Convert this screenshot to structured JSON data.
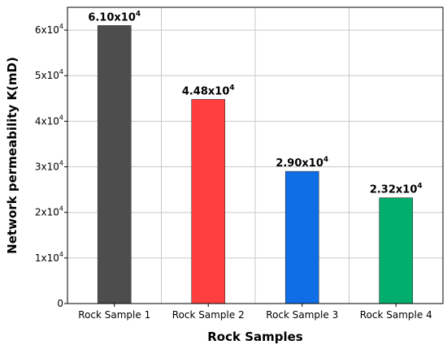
{
  "chart_data": {
    "type": "bar",
    "categories": [
      "Rock Sample 1",
      "Rock Sample 2",
      "Rock Sample 3",
      "Rock Sample 4"
    ],
    "values": [
      61000,
      44800,
      29000,
      23200
    ],
    "data_labels": [
      {
        "mantissa": "6.10x10",
        "exponent": "4"
      },
      {
        "mantissa": "4.48x10",
        "exponent": "4"
      },
      {
        "mantissa": "2.90x10",
        "exponent": "4"
      },
      {
        "mantissa": "2.32x10",
        "exponent": "4"
      }
    ],
    "colors": [
      "#4d4d4d",
      "#ff3f3f",
      "#0f6ee6",
      "#00ad6a"
    ],
    "xlabel": "Rock Samples",
    "ylabel": "Network permeability K(mD)",
    "ylim": [
      0,
      65000
    ],
    "yticks": [
      {
        "value": 0,
        "mantissa": "0",
        "exponent": ""
      },
      {
        "value": 10000,
        "mantissa": "1x10",
        "exponent": "4"
      },
      {
        "value": 20000,
        "mantissa": "2x10",
        "exponent": "4"
      },
      {
        "value": 30000,
        "mantissa": "3x10",
        "exponent": "4"
      },
      {
        "value": 40000,
        "mantissa": "4x10",
        "exponent": "4"
      },
      {
        "value": 50000,
        "mantissa": "5x10",
        "exponent": "4"
      },
      {
        "value": 60000,
        "mantissa": "6x10",
        "exponent": "4"
      }
    ],
    "grid": true
  }
}
